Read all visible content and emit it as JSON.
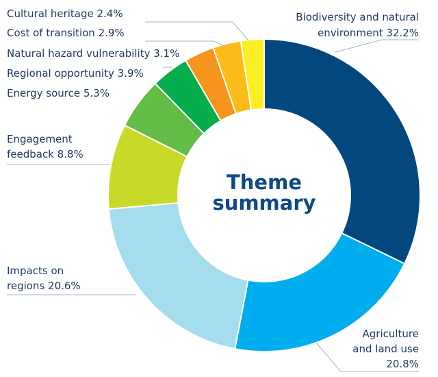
{
  "chart_data": {
    "type": "donut",
    "center_label": [
      "Theme",
      "summary"
    ],
    "slices": [
      {
        "label": "Biodiversity and natural environment",
        "value": 32.2,
        "display": [
          "Biodiversity and natural",
          "environment 32.2%"
        ],
        "color": "#02477d"
      },
      {
        "label": "Agriculture and land use",
        "value": 20.8,
        "display": [
          "Agriculture",
          "and land use",
          "20.8%"
        ],
        "color": "#00adef"
      },
      {
        "label": "Impacts on regions",
        "value": 20.6,
        "display": [
          "Impacts on",
          "regions 20.6%"
        ],
        "color": "#a5dcee"
      },
      {
        "label": "Engagement feedback",
        "value": 8.8,
        "display": [
          "Engagement",
          "feedback 8.8%"
        ],
        "color": "#c9d92a"
      },
      {
        "label": "Energy source",
        "value": 5.3,
        "display": [
          "Energy source  5.3%"
        ],
        "color": "#63bc46"
      },
      {
        "label": "Regional opportunity",
        "value": 3.9,
        "display": [
          "Regional opportunity  3.9%"
        ],
        "color": "#06ad4c"
      },
      {
        "label": "Natural hazard vulnerability",
        "value": 3.1,
        "display": [
          "Natural hazard vulnerability 3.1%"
        ],
        "color": "#f7941d"
      },
      {
        "label": "Cost of transition",
        "value": 2.9,
        "display": [
          "Cost of transition  2.9%"
        ],
        "color": "#fdbb1a"
      },
      {
        "label": "Cultural heritage",
        "value": 2.4,
        "display": [
          "Cultural heritage  2.4%"
        ],
        "color": "#fbee22"
      }
    ]
  }
}
